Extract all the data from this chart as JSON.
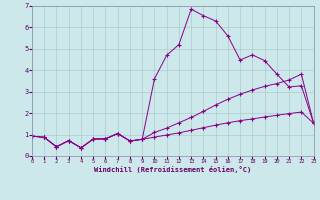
{
  "xlabel": "Windchill (Refroidissement éolien,°C)",
  "background_color": "#cce8ea",
  "grid_color": "#aacccc",
  "line_color": "#880088",
  "xlim": [
    0,
    23
  ],
  "ylim": [
    0,
    7
  ],
  "xticks": [
    0,
    1,
    2,
    3,
    4,
    5,
    6,
    7,
    8,
    9,
    10,
    11,
    12,
    13,
    14,
    15,
    16,
    17,
    18,
    19,
    20,
    21,
    22,
    23
  ],
  "yticks": [
    0,
    1,
    2,
    3,
    4,
    5,
    6,
    7
  ],
  "line1_x": [
    0,
    1,
    2,
    3,
    4,
    5,
    6,
    7,
    8,
    9,
    10,
    11,
    12,
    13,
    14,
    15,
    16,
    17,
    18,
    19,
    20,
    21,
    22,
    23
  ],
  "line1_y": [
    0.93,
    0.87,
    0.43,
    0.72,
    0.38,
    0.79,
    0.8,
    1.05,
    0.7,
    0.78,
    3.6,
    4.7,
    5.2,
    6.85,
    6.55,
    6.3,
    5.6,
    4.48,
    4.72,
    4.45,
    3.82,
    3.22,
    3.28,
    1.53
  ],
  "line2_x": [
    0,
    1,
    2,
    3,
    4,
    5,
    6,
    7,
    8,
    9,
    10,
    11,
    12,
    13,
    14,
    15,
    16,
    17,
    18,
    19,
    20,
    21,
    22,
    23
  ],
  "line2_y": [
    0.93,
    0.87,
    0.43,
    0.72,
    0.38,
    0.79,
    0.8,
    1.05,
    0.7,
    0.78,
    1.1,
    1.3,
    1.55,
    1.8,
    2.08,
    2.38,
    2.65,
    2.88,
    3.08,
    3.25,
    3.38,
    3.55,
    3.82,
    1.53
  ],
  "line3_x": [
    0,
    1,
    2,
    3,
    4,
    5,
    6,
    7,
    8,
    9,
    10,
    11,
    12,
    13,
    14,
    15,
    16,
    17,
    18,
    19,
    20,
    21,
    22,
    23
  ],
  "line3_y": [
    0.93,
    0.87,
    0.43,
    0.72,
    0.38,
    0.79,
    0.8,
    1.05,
    0.7,
    0.78,
    0.88,
    0.98,
    1.08,
    1.2,
    1.32,
    1.44,
    1.55,
    1.65,
    1.73,
    1.82,
    1.9,
    1.98,
    2.05,
    1.53
  ]
}
